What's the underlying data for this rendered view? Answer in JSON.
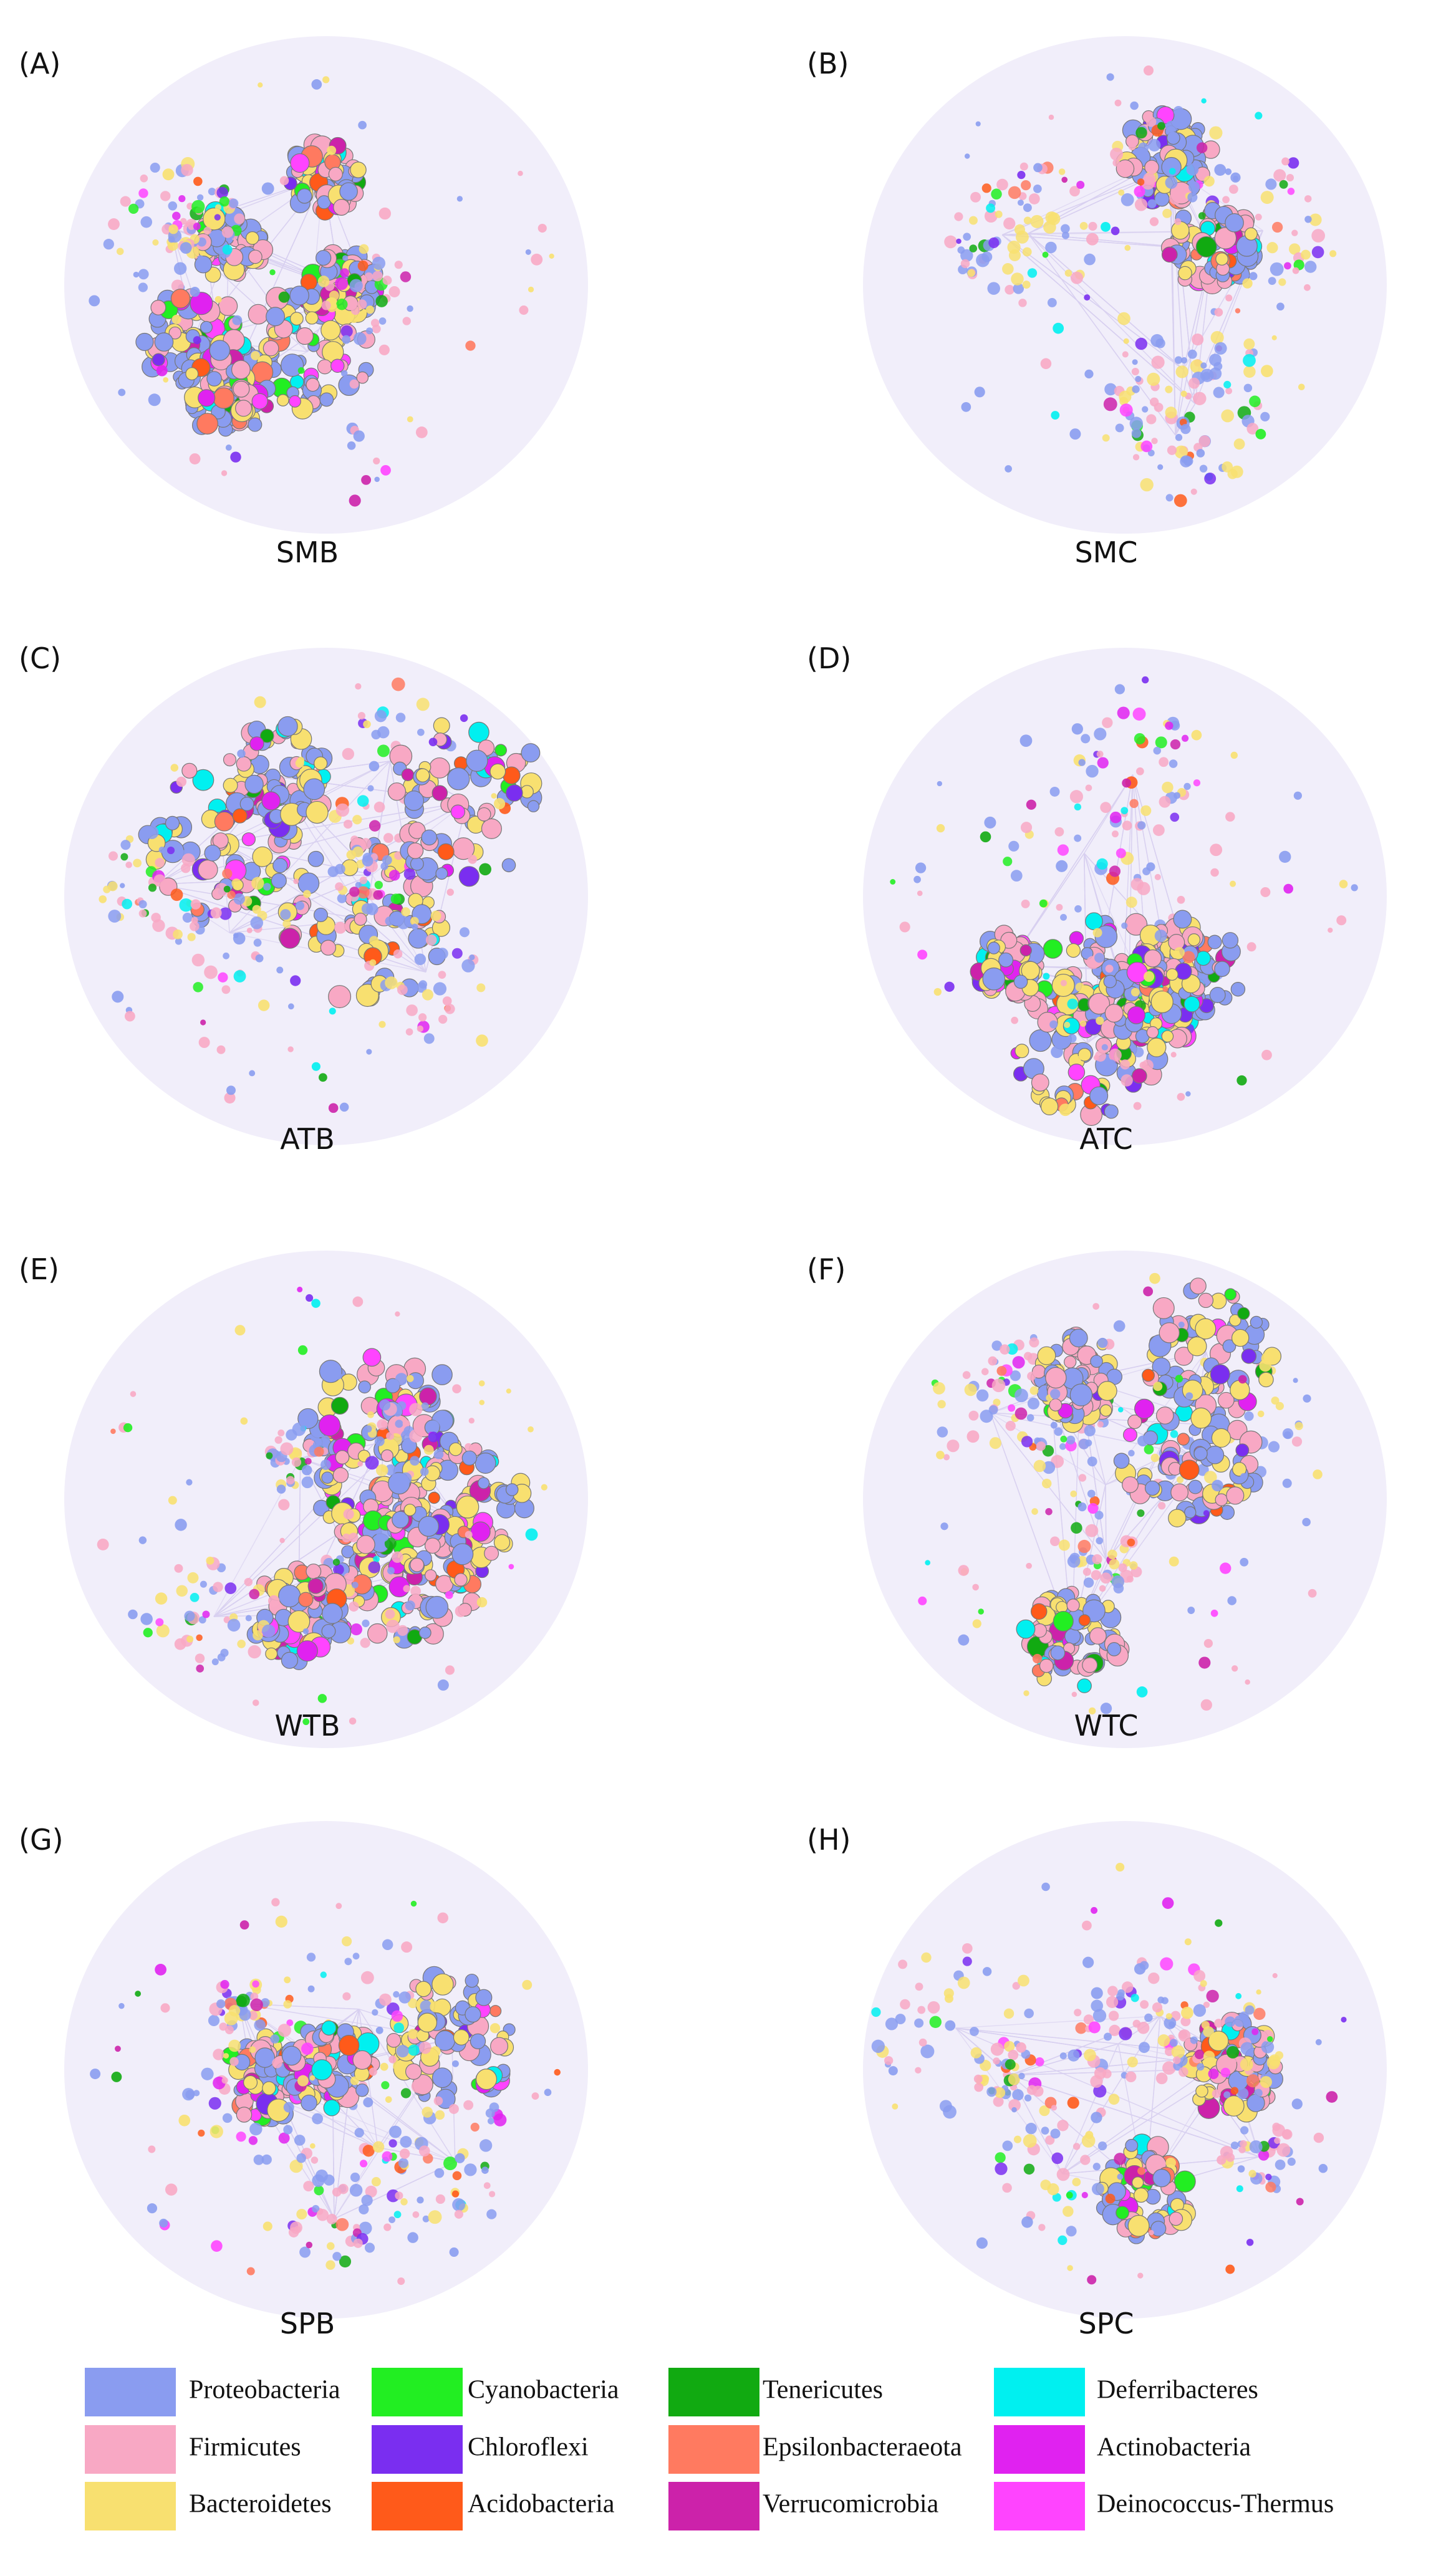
{
  "panels": [
    {
      "letter": "(A)",
      "name": "SMB"
    },
    {
      "letter": "(B)",
      "name": "SMC"
    },
    {
      "letter": "(C)",
      "name": "ATB"
    },
    {
      "letter": "(D)",
      "name": "ATC"
    },
    {
      "letter": "(E)",
      "name": "WTB"
    },
    {
      "letter": "(F)",
      "name": "WTC"
    },
    {
      "letter": "(G)",
      "name": "SPB"
    },
    {
      "letter": "(H)",
      "name": "SPC"
    }
  ],
  "legend": [
    {
      "label": "Proteobacteria",
      "color": "#8a9cf0"
    },
    {
      "label": "Firmicutes",
      "color": "#f8a8c4"
    },
    {
      "label": "Bacteroidetes",
      "color": "#f8e070"
    },
    {
      "label": "Cyanobacteria",
      "color": "#22ee22"
    },
    {
      "label": "Chloroflexi",
      "color": "#7a2ef0"
    },
    {
      "label": "Acidobacteria",
      "color": "#ff5a1a"
    },
    {
      "label": "Tenericutes",
      "color": "#11aa11"
    },
    {
      "label": "Epsilonbacteraeota",
      "color": "#ff7a60"
    },
    {
      "label": "Verrucomicrobia",
      "color": "#cc22aa"
    },
    {
      "label": "Deferribacteres",
      "color": "#00f0f0"
    },
    {
      "label": "Actinobacteria",
      "color": "#e022f0"
    },
    {
      "label": "Deinococcus-Thermus",
      "color": "#ff44ff"
    }
  ]
}
